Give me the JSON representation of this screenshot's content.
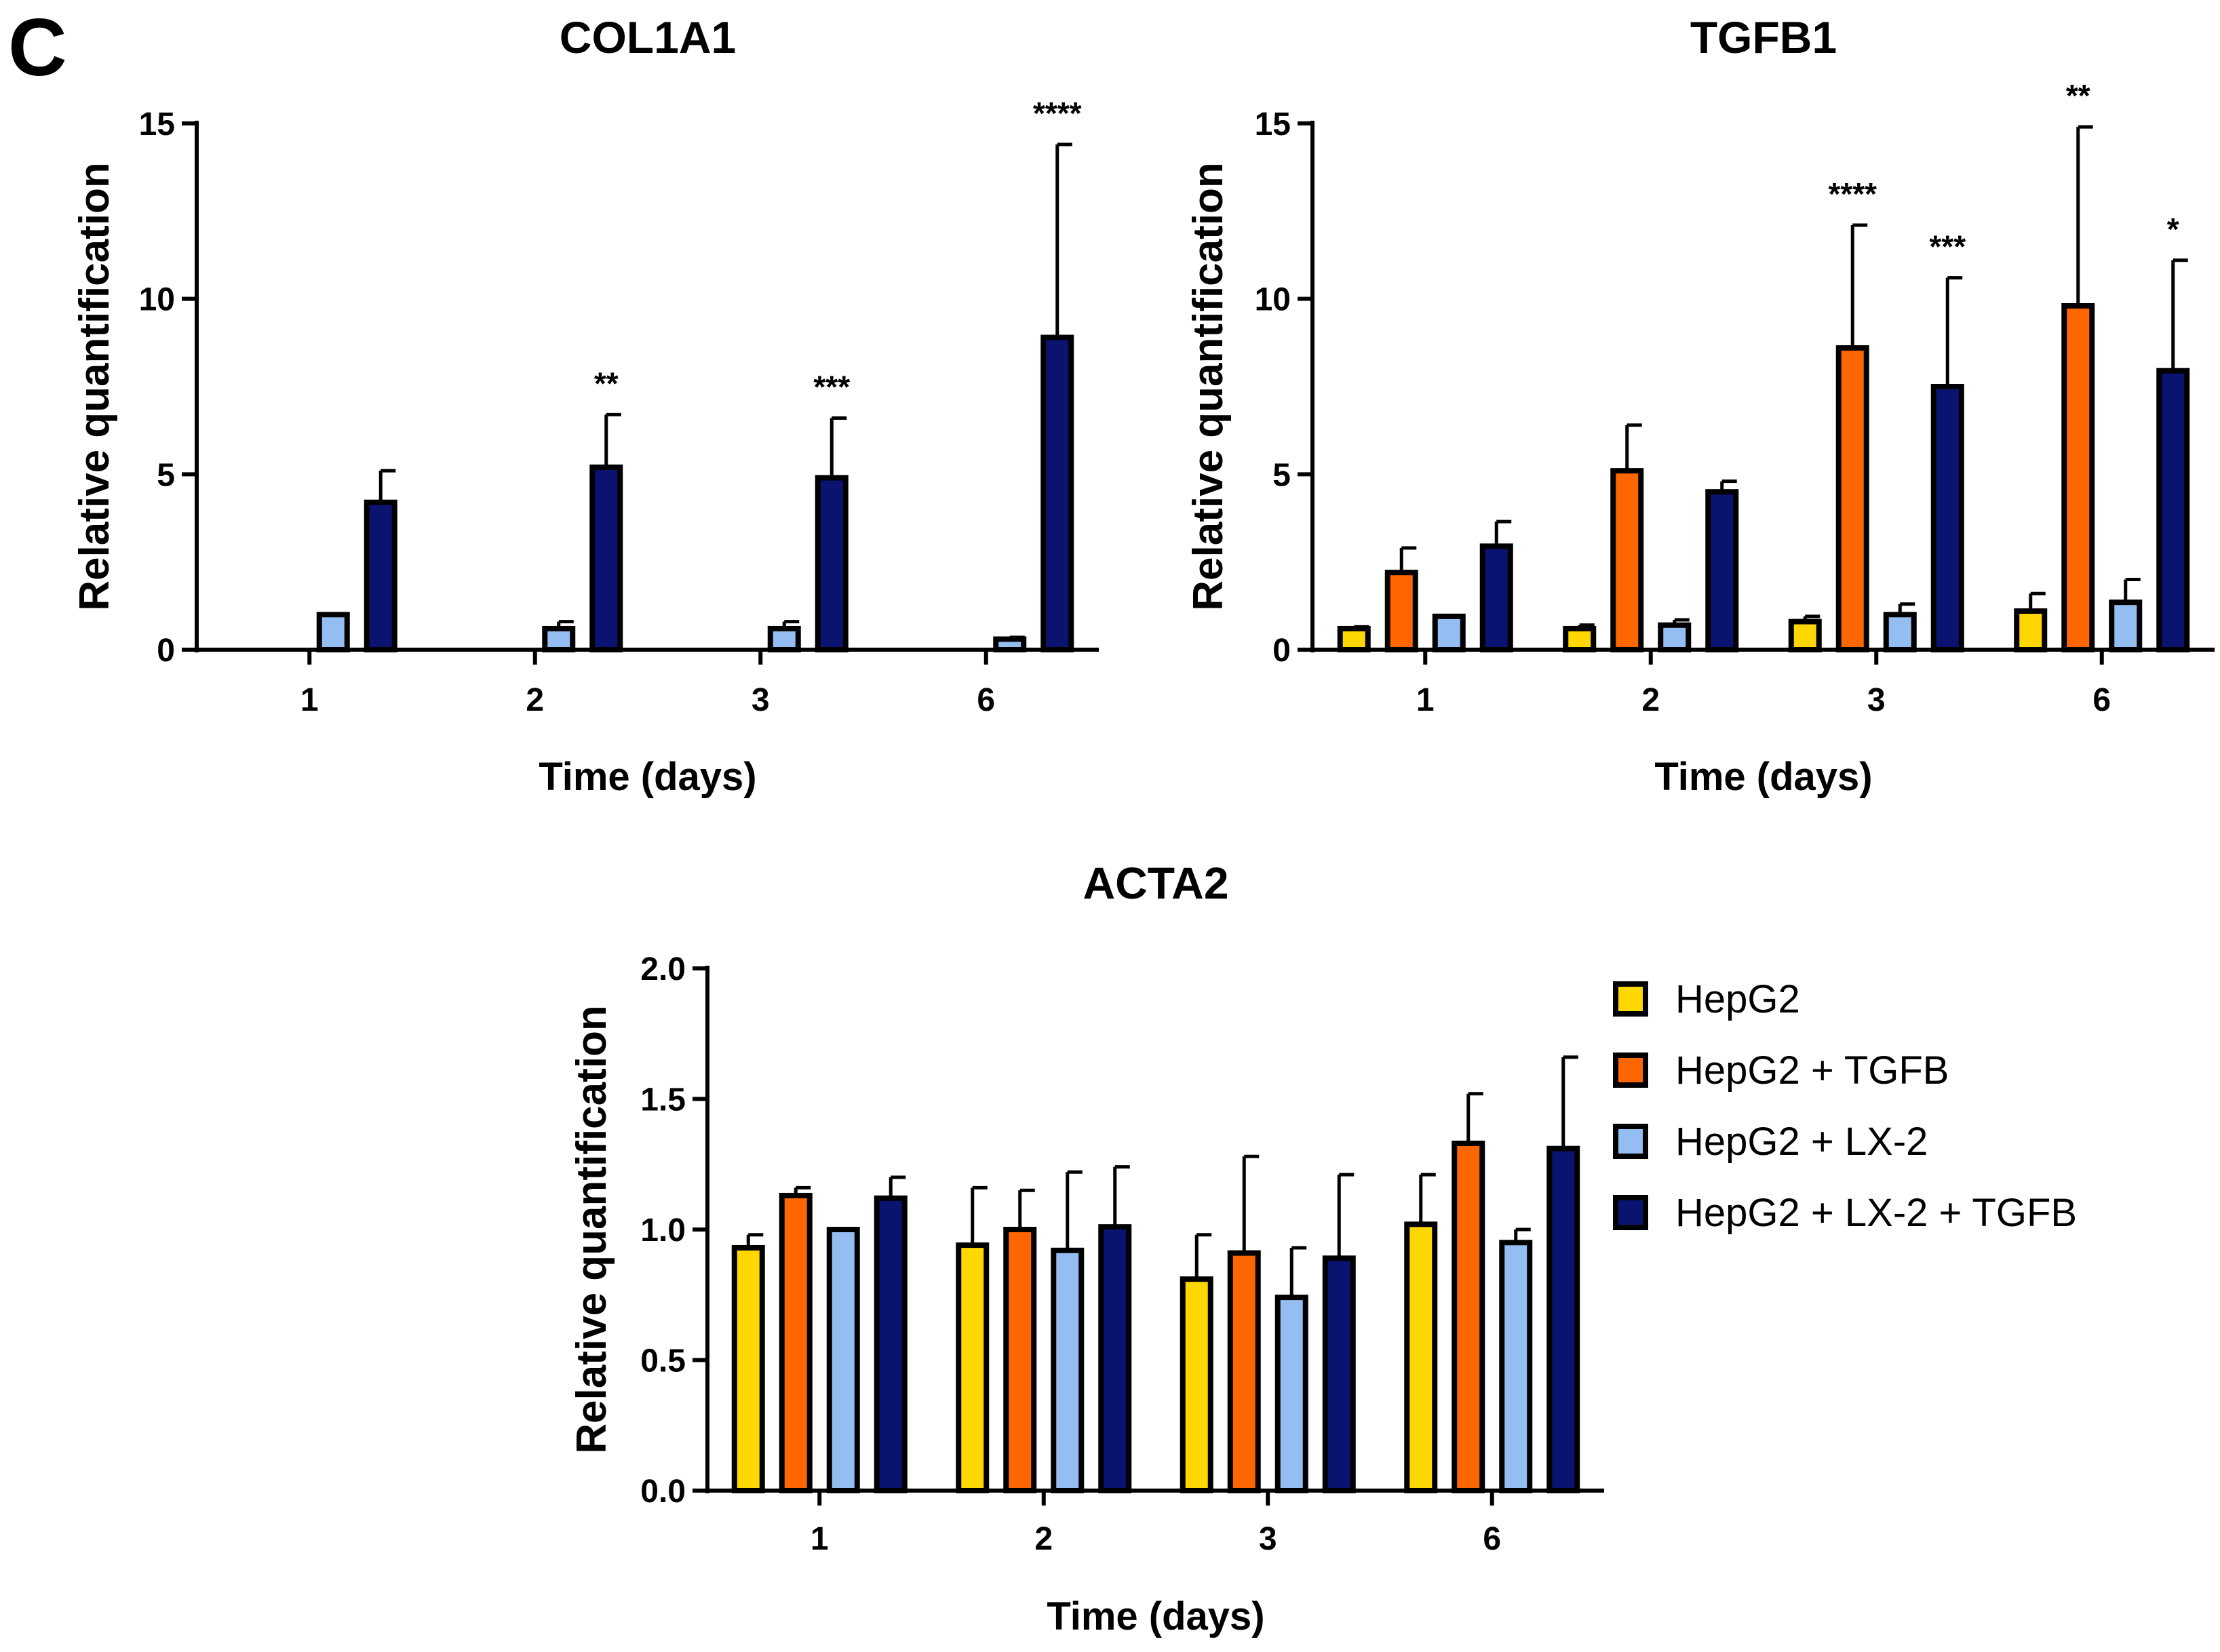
{
  "panel_label": "C",
  "colors": {
    "HepG2": "#FFD700",
    "HepG2 + TGFB": "#FF6600",
    "HepG2 + LX-2": "#94BDF2",
    "HepG2 + LX-2 + TGFB": "#0A1370"
  },
  "legend": {
    "entries": [
      "HepG2",
      "HepG2 + TGFB",
      "HepG2 + LX-2",
      "HepG2 + LX-2 + TGFB"
    ]
  },
  "chart_data": [
    {
      "type": "bar",
      "title": "COL1A1",
      "xlabel": "Time (days)",
      "ylabel": "Relative quantification",
      "categories": [
        "1",
        "2",
        "3",
        "6"
      ],
      "ylim": [
        0,
        15
      ],
      "yticks": [
        "0",
        "5",
        "10",
        "15"
      ],
      "series": [
        {
          "name": "HepG2",
          "values": [
            0,
            0,
            0,
            0
          ],
          "errors": [
            0,
            0,
            0,
            0
          ]
        },
        {
          "name": "HepG2 + TGFB",
          "values": [
            0,
            0,
            0,
            0
          ],
          "errors": [
            0,
            0,
            0,
            0
          ]
        },
        {
          "name": "HepG2 + LX-2",
          "values": [
            1.0,
            0.6,
            0.6,
            0.3
          ],
          "errors": [
            0,
            0.2,
            0.2,
            0.05
          ]
        },
        {
          "name": "HepG2 + LX-2 + TGFB",
          "values": [
            4.2,
            5.2,
            4.9,
            8.9
          ],
          "errors": [
            0.9,
            1.5,
            1.7,
            5.5
          ]
        }
      ],
      "significance": [
        {
          "category": "2",
          "series": "HepG2 + LX-2 + TGFB",
          "label": "**"
        },
        {
          "category": "3",
          "series": "HepG2 + LX-2 + TGFB",
          "label": "***"
        },
        {
          "category": "6",
          "series": "HepG2 + LX-2 + TGFB",
          "label": "****"
        }
      ]
    },
    {
      "type": "bar",
      "title": "TGFB1",
      "xlabel": "Time (days)",
      "ylabel": "Relative quantification",
      "categories": [
        "1",
        "2",
        "3",
        "6"
      ],
      "ylim": [
        0,
        15
      ],
      "yticks": [
        "0",
        "5",
        "10",
        "15"
      ],
      "series": [
        {
          "name": "HepG2",
          "values": [
            0.6,
            0.6,
            0.8,
            1.1
          ],
          "errors": [
            0.05,
            0.1,
            0.15,
            0.5
          ]
        },
        {
          "name": "HepG2 + TGFB",
          "values": [
            2.2,
            5.1,
            8.6,
            9.8
          ],
          "errors": [
            0.7,
            1.3,
            3.5,
            5.1
          ]
        },
        {
          "name": "HepG2 + LX-2",
          "values": [
            0.95,
            0.7,
            1.0,
            1.35
          ],
          "errors": [
            0,
            0.15,
            0.3,
            0.65
          ]
        },
        {
          "name": "HepG2 + LX-2 + TGFB",
          "values": [
            2.95,
            4.5,
            7.5,
            7.95
          ],
          "errors": [
            0.7,
            0.3,
            3.1,
            3.15
          ]
        }
      ],
      "significance": [
        {
          "category": "3",
          "series": "HepG2 + TGFB",
          "label": "****"
        },
        {
          "category": "3",
          "series": "HepG2 + LX-2 + TGFB",
          "label": "***"
        },
        {
          "category": "6",
          "series": "HepG2 + TGFB",
          "label": "**"
        },
        {
          "category": "6",
          "series": "HepG2 + LX-2 + TGFB",
          "label": "*"
        }
      ]
    },
    {
      "type": "bar",
      "title": "ACTA2",
      "xlabel": "Time (days)",
      "ylabel": "Relative quantification",
      "categories": [
        "1",
        "2",
        "3",
        "6"
      ],
      "ylim": [
        0,
        2.0
      ],
      "yticks": [
        "0.0",
        "0.5",
        "1.0",
        "1.5",
        "2.0"
      ],
      "series": [
        {
          "name": "HepG2",
          "values": [
            0.93,
            0.94,
            0.81,
            1.02
          ],
          "errors": [
            0.05,
            0.22,
            0.17,
            0.19
          ]
        },
        {
          "name": "HepG2 + TGFB",
          "values": [
            1.13,
            1.0,
            0.91,
            1.33
          ],
          "errors": [
            0.03,
            0.15,
            0.37,
            0.19
          ]
        },
        {
          "name": "HepG2 + LX-2",
          "values": [
            1.0,
            0.92,
            0.74,
            0.95
          ],
          "errors": [
            0,
            0.3,
            0.19,
            0.05
          ]
        },
        {
          "name": "HepG2 + LX-2 + TGFB",
          "values": [
            1.12,
            1.01,
            0.89,
            1.31
          ],
          "errors": [
            0.08,
            0.23,
            0.32,
            0.35
          ]
        }
      ],
      "significance": []
    }
  ]
}
